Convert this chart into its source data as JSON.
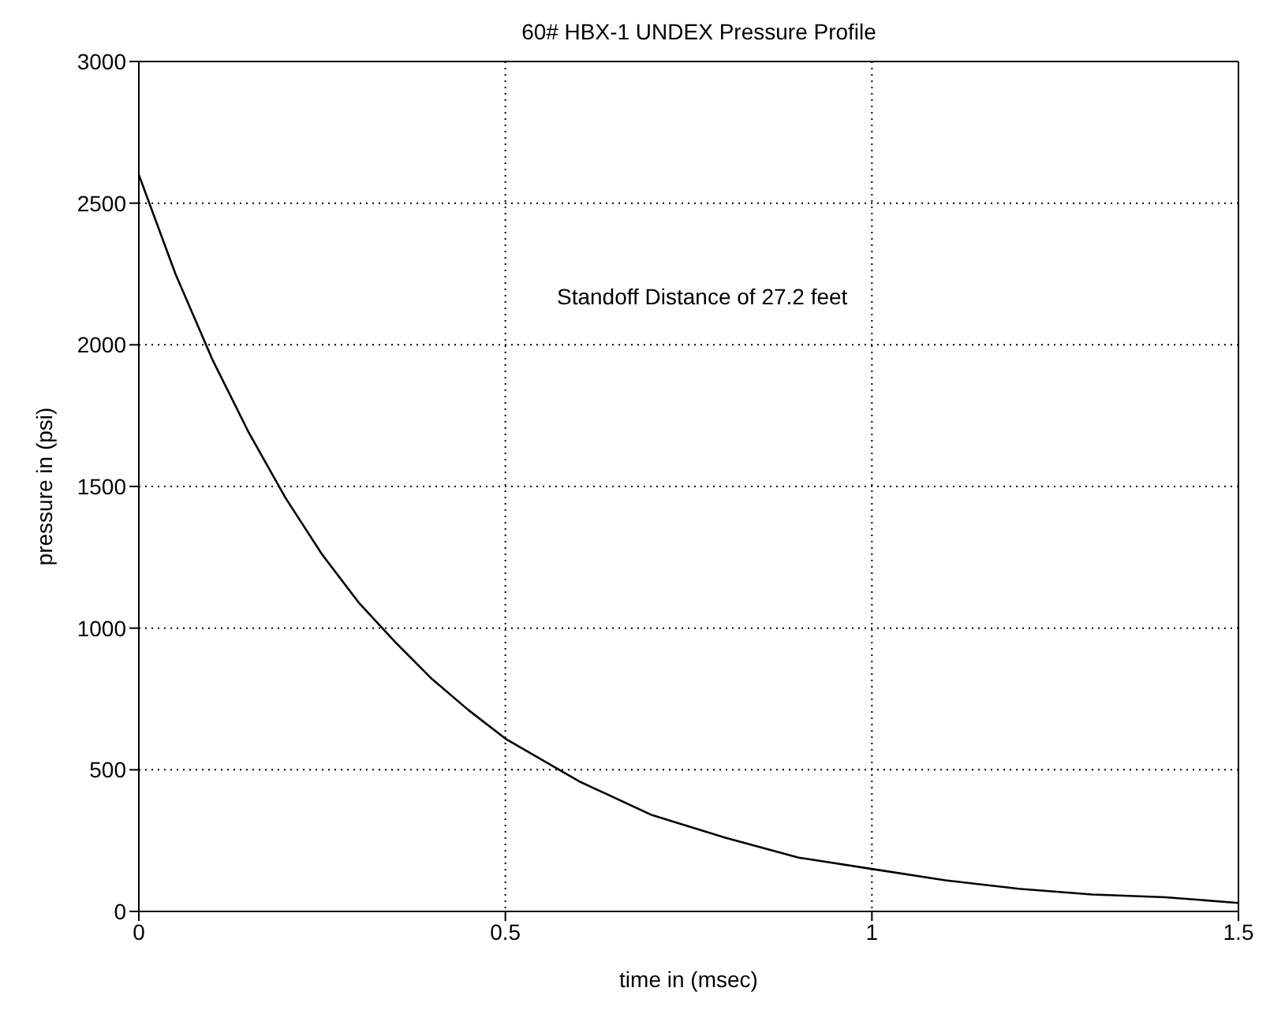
{
  "chart_data": {
    "type": "line",
    "title": "60# HBX-1 UNDEX Pressure Profile",
    "xlabel": "time in (msec)",
    "ylabel": "pressure in (psi)",
    "annotations": [
      "Standoff Distance of 27.2 feet"
    ],
    "x": [
      0,
      0.05,
      0.1,
      0.15,
      0.2,
      0.25,
      0.3,
      0.35,
      0.4,
      0.45,
      0.5,
      0.6,
      0.7,
      0.8,
      0.9,
      1.0,
      1.1,
      1.2,
      1.3,
      1.4,
      1.5
    ],
    "series": [
      {
        "color": "#000000",
        "values": [
          2600,
          2250,
          1950,
          1690,
          1460,
          1260,
          1090,
          950,
          820,
          710,
          610,
          460,
          340,
          260,
          190,
          150,
          110,
          80,
          60,
          50,
          30
        ]
      }
    ],
    "xlim": [
      0,
      1.5
    ],
    "xticks": [
      0,
      0.5,
      1,
      1.5
    ],
    "ylim": [
      0,
      3000
    ],
    "yticks": [
      0,
      500,
      1000,
      1500,
      2000,
      2500,
      3000
    ],
    "grid": true,
    "marker": "none",
    "line_style": "solid"
  }
}
